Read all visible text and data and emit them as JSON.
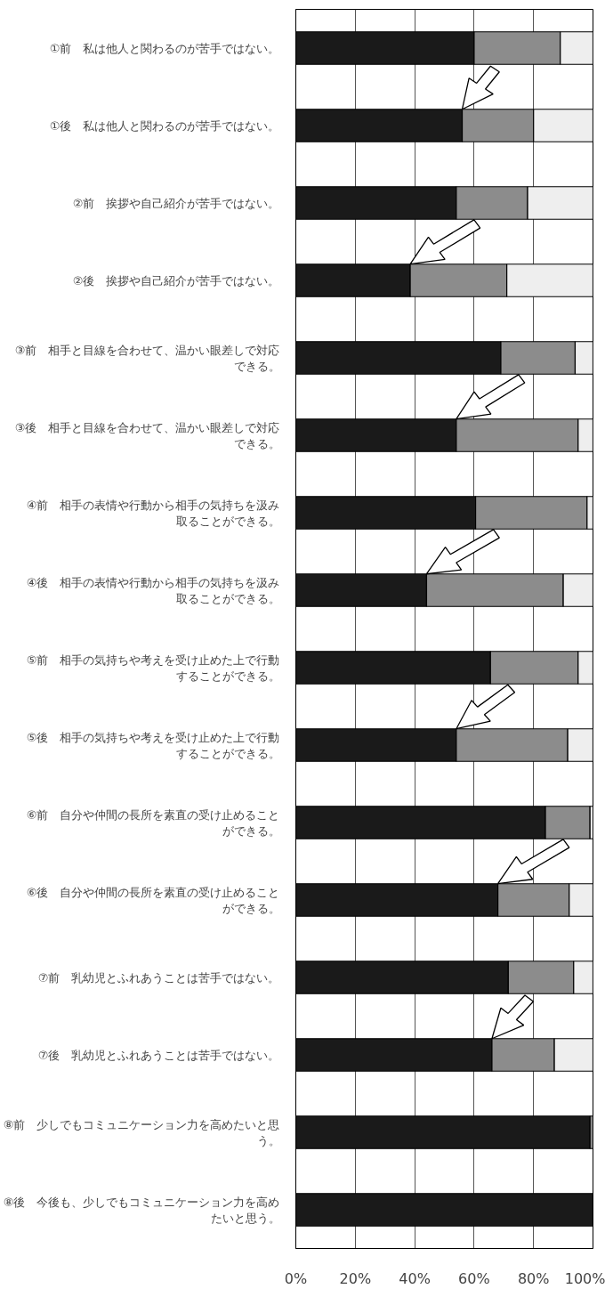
{
  "chart_data": {
    "type": "bar",
    "orientation": "horizontal",
    "stacked": true,
    "grid": "x",
    "categories": [
      "①前　私は他人と関わるのが苦手ではない。",
      "①後　私は他人と関わるのが苦手ではない。",
      "②前　挨拶や自己紹介が苦手ではない。",
      "②後　挨拶や自己紹介が苦手ではない。",
      "③前　相手と目線を合わせて、温かい眼差しで対応できる。",
      "③後　相手と目線を合わせて、温かい眼差しで対応できる。",
      "④前　相手の表情や行動から相手の気持ちを汲み取ることができる。",
      "④後　相手の表情や行動から相手の気持ちを汲み取ることができる。",
      "⑤前　相手の気持ちや考えを受け止めた上で行動することができる。",
      "⑤後　相手の気持ちや考えを受け止めた上で行動することができる。",
      "⑥前　自分や仲間の長所を素直の受け止めることができる。",
      "⑥後　自分や仲間の長所を素直の受け止めることができる。",
      "⑦前　乳幼児とふれあうことは苦手ではない。",
      "⑦後　乳幼児とふれあうことは苦手ではない。",
      "⑧前　少しでもコミュニケーション力を高めたいと思う。",
      "⑧後　今後も、少しでもコミュニケーション力を高めたいと思う。"
    ],
    "series": [
      {
        "color": "#1a1a1a",
        "values": [
          60,
          56,
          54,
          38.5,
          69,
          54,
          60.5,
          44,
          65.5,
          54,
          84,
          68,
          71.5,
          66,
          99,
          100
        ]
      },
      {
        "color": "#8c8c8c",
        "values": [
          29,
          24,
          24,
          32.5,
          25,
          41,
          37.5,
          46,
          29.5,
          37.5,
          15,
          24,
          22,
          21,
          1,
          0
        ]
      },
      {
        "color": "#eeeeee",
        "values": [
          11,
          20,
          22,
          29,
          6,
          5,
          2,
          10,
          5,
          8.5,
          1,
          8,
          6.5,
          13,
          0,
          0
        ]
      }
    ],
    "xlim": [
      0,
      100
    ],
    "xticks": [
      {
        "value": 0,
        "label": "0%"
      },
      {
        "value": 20,
        "label": "20%"
      },
      {
        "value": 40,
        "label": "40%"
      },
      {
        "value": 60,
        "label": "60%"
      },
      {
        "value": 80,
        "label": "80%"
      },
      {
        "value": 100,
        "label": "100%"
      }
    ]
  }
}
